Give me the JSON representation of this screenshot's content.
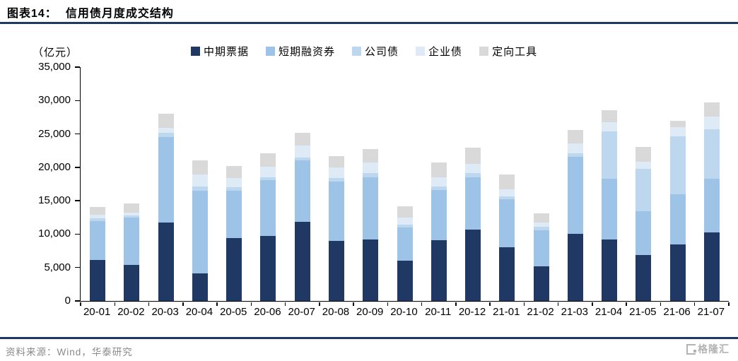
{
  "header": {
    "figure_label": "图表14：",
    "title": "信用债月度成交结构"
  },
  "chart": {
    "unit_label": "（亿元）"
  },
  "footer": {
    "source": "资料来源：Wind，华泰研究",
    "logo_text": "格隆汇"
  },
  "colors": {
    "accent_rule": "#1F3864",
    "axis": "#000000",
    "source_text": "#8a8a8a",
    "logo_gray": "#b3b3b3"
  },
  "chart_data": {
    "type": "bar",
    "stacked": true,
    "title": "信用债月度成交结构",
    "unit": "亿元",
    "legend_position": "top",
    "grid": false,
    "ylim": [
      0,
      35000
    ],
    "ytick_step": 5000,
    "categories": [
      "20-01",
      "20-02",
      "20-03",
      "20-04",
      "20-05",
      "20-06",
      "20-07",
      "20-08",
      "20-09",
      "20-10",
      "20-11",
      "20-12",
      "21-01",
      "21-02",
      "21-03",
      "21-04",
      "21-05",
      "21-06",
      "21-07"
    ],
    "series": [
      {
        "name": "中期票据",
        "color": "#1F3864",
        "values": [
          6100,
          5400,
          11700,
          4100,
          9400,
          9700,
          11800,
          9000,
          9200,
          6000,
          9100,
          10700,
          8000,
          5200,
          10000,
          9200,
          6900,
          8500,
          10300
        ]
      },
      {
        "name": "短期融资券",
        "color": "#9DC3E6",
        "values": [
          5900,
          7100,
          12800,
          12400,
          7100,
          8400,
          9200,
          8900,
          9300,
          5000,
          7500,
          7800,
          7200,
          5400,
          11600,
          9100,
          6500,
          7500,
          8000
        ]
      },
      {
        "name": "公司债",
        "color": "#BDD7EE",
        "values": [
          400,
          300,
          700,
          600,
          500,
          450,
          450,
          500,
          600,
          450,
          500,
          600,
          500,
          450,
          550,
          7050,
          6350,
          8600,
          7400
        ]
      },
      {
        "name": "企业债",
        "color": "#DEEBF7",
        "values": [
          450,
          450,
          700,
          1850,
          1450,
          1600,
          1850,
          1600,
          1600,
          1050,
          1450,
          1400,
          1050,
          700,
          1400,
          1450,
          1050,
          1400,
          1850
        ]
      },
      {
        "name": "定向工具",
        "color": "#D9D9D9",
        "values": [
          1250,
          1300,
          2100,
          2050,
          1750,
          2000,
          1900,
          1700,
          2000,
          1700,
          2150,
          2400,
          2150,
          1350,
          2050,
          1800,
          2200,
          1000,
          2150
        ]
      }
    ],
    "totals": [
      14100,
      14550,
      28000,
      21000,
      20200,
      22150,
      25200,
      21700,
      22700,
      14200,
      20700,
      22900,
      18900,
      13100,
      25600,
      28600,
      23000,
      27000,
      29700
    ]
  }
}
